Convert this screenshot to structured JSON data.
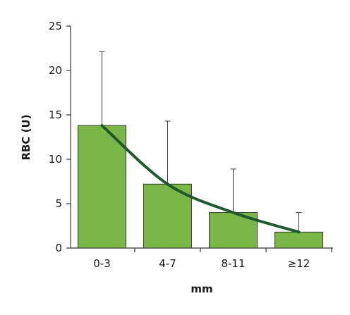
{
  "chart_data": {
    "type": "bar",
    "categories": [
      "0-3",
      "4-7",
      "8-11",
      "≥12"
    ],
    "values": [
      13.8,
      7.2,
      4.0,
      1.8
    ],
    "error_upper": [
      22.1,
      14.3,
      8.9,
      4.0
    ],
    "trend_line": [
      13.8,
      7.2,
      4.0,
      1.8
    ],
    "xlabel": "mm",
    "ylabel": "RBC (U)",
    "ylim": [
      0,
      25
    ],
    "yticks": [
      0,
      5,
      10,
      15,
      20,
      25
    ],
    "colors": {
      "bar_fill": "#7ab648",
      "bar_stroke": "#2d3a22",
      "trend_line": "#1e5a2c",
      "error_bar": "#333333",
      "axis": "#333333"
    }
  }
}
